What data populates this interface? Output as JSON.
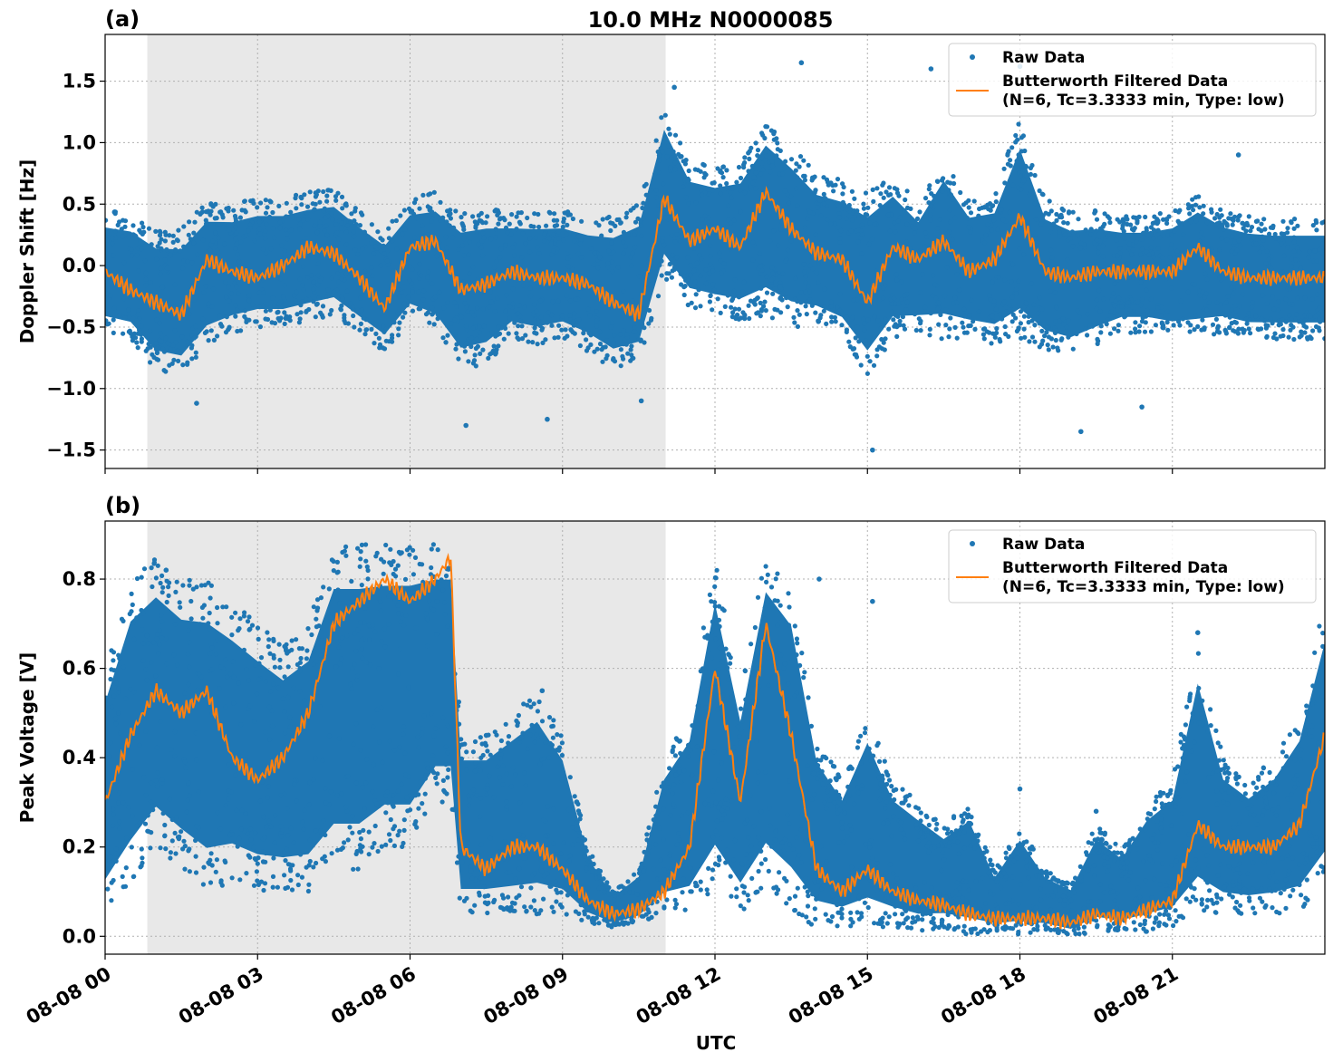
{
  "figure": {
    "title": "10.0 MHz N0000085",
    "xlabel": "UTC",
    "colors": {
      "raw": "#1f77b4",
      "filtered": "#ff7f0e",
      "shade": "#e8e8e8"
    }
  },
  "chart_data": [
    {
      "type": "scatter",
      "panel_label": "(a)",
      "title": "10.0 MHz N0000085",
      "xlabel": "",
      "ylabel": "Doppler Shift [Hz]",
      "xlim": [
        0,
        24
      ],
      "ylim": [
        -1.65,
        1.88
      ],
      "x_ticks": [
        0,
        3,
        6,
        9,
        12,
        15,
        18,
        21
      ],
      "y_ticks": [
        -1.5,
        -1.0,
        -0.5,
        0.0,
        0.5,
        1.0,
        1.5
      ],
      "y_tick_labels": [
        "−1.5",
        "−1.0",
        "−0.5",
        "0.0",
        "0.5",
        "1.0",
        "1.5"
      ],
      "shaded_region": [
        0.83,
        11.03
      ],
      "grid": true,
      "legend_position": "top-right",
      "legend": [
        "Raw Data",
        "Butterworth Filtered Data",
        "(N=6, Tc=3.3333 min, Type: low)"
      ],
      "series": [
        {
          "name": "Raw Data",
          "kind": "scatter-band",
          "x": [
            0,
            0.5,
            1,
            1.5,
            2,
            2.5,
            3,
            3.5,
            4,
            4.5,
            5,
            5.5,
            6,
            6.5,
            7,
            7.5,
            8,
            8.5,
            9,
            9.5,
            10,
            10.5,
            11,
            11.5,
            12,
            12.5,
            13,
            13.5,
            14,
            14.5,
            15,
            15.5,
            16,
            16.5,
            17,
            17.5,
            18,
            18.5,
            19,
            19.5,
            20,
            20.5,
            21,
            21.5,
            22,
            22.5,
            23,
            23.5,
            24
          ],
          "y_high": [
            0.45,
            0.42,
            0.3,
            0.3,
            0.52,
            0.5,
            0.55,
            0.55,
            0.6,
            0.62,
            0.45,
            0.3,
            0.55,
            0.6,
            0.45,
            0.48,
            0.45,
            0.45,
            0.45,
            0.4,
            0.4,
            0.5,
            1.3,
            0.85,
            0.8,
            0.85,
            1.2,
            1.0,
            0.75,
            0.7,
            0.6,
            0.75,
            0.5,
            0.9,
            0.55,
            0.6,
            1.2,
            0.55,
            0.45,
            0.45,
            0.4,
            0.4,
            0.45,
            0.6,
            0.45,
            0.4,
            0.38,
            0.38,
            0.38
          ],
          "y_low": [
            -0.55,
            -0.6,
            -0.85,
            -0.9,
            -0.65,
            -0.55,
            -0.5,
            -0.5,
            -0.45,
            -0.4,
            -0.55,
            -0.7,
            -0.45,
            -0.55,
            -0.85,
            -0.8,
            -0.6,
            -0.65,
            -0.6,
            -0.7,
            -0.85,
            -0.8,
            -0.1,
            -0.35,
            -0.4,
            -0.45,
            -0.4,
            -0.5,
            -0.5,
            -0.6,
            -0.9,
            -0.6,
            -0.55,
            -0.6,
            -0.6,
            -0.65,
            -0.6,
            -0.7,
            -0.75,
            -0.65,
            -0.55,
            -0.55,
            -0.6,
            -0.6,
            -0.55,
            -0.6,
            -0.6,
            -0.6,
            -0.6
          ],
          "outliers": [
            [
              1.8,
              -1.12
            ],
            [
              7.1,
              -1.3
            ],
            [
              8.7,
              -1.25
            ],
            [
              10.55,
              -1.1
            ],
            [
              11.2,
              1.45
            ],
            [
              13.7,
              1.65
            ],
            [
              15.1,
              -1.5
            ],
            [
              16.25,
              1.6
            ],
            [
              18.0,
              1.62
            ],
            [
              19.2,
              -1.35
            ],
            [
              20.4,
              -1.15
            ],
            [
              22.3,
              0.9
            ]
          ]
        },
        {
          "name": "Butterworth Filtered Data",
          "kind": "line",
          "x": [
            0,
            0.5,
            1,
            1.5,
            2,
            2.5,
            3,
            3.5,
            4,
            4.5,
            5,
            5.5,
            6,
            6.5,
            7,
            7.5,
            8,
            8.5,
            9,
            9.5,
            10,
            10.5,
            11,
            11.5,
            12,
            12.5,
            13,
            13.5,
            14,
            14.5,
            15,
            15.5,
            16,
            16.5,
            17,
            17.5,
            18,
            18.5,
            19,
            19.5,
            20,
            20.5,
            21,
            21.5,
            22,
            22.5,
            23,
            23.5,
            24
          ],
          "y": [
            -0.05,
            -0.2,
            -0.3,
            -0.4,
            0.05,
            -0.05,
            -0.1,
            0.0,
            0.15,
            0.1,
            -0.1,
            -0.35,
            0.15,
            0.2,
            -0.2,
            -0.15,
            -0.05,
            -0.1,
            -0.1,
            -0.15,
            -0.3,
            -0.4,
            0.55,
            0.2,
            0.3,
            0.15,
            0.6,
            0.3,
            0.1,
            0.05,
            -0.3,
            0.15,
            0.05,
            0.2,
            -0.05,
            0.05,
            0.4,
            -0.05,
            -0.1,
            -0.05,
            -0.05,
            -0.05,
            -0.05,
            0.15,
            -0.05,
            -0.1,
            -0.1,
            -0.1,
            -0.1
          ]
        }
      ]
    },
    {
      "type": "scatter",
      "panel_label": "(b)",
      "title": "",
      "xlabel": "UTC",
      "ylabel": "Peak Voltage [V]",
      "xlim": [
        0,
        24
      ],
      "ylim": [
        -0.04,
        0.93
      ],
      "x_ticks": [
        0,
        3,
        6,
        9,
        12,
        15,
        18,
        21
      ],
      "x_tick_labels": [
        "08-08 00",
        "08-08 03",
        "08-08 06",
        "08-08 09",
        "08-08 12",
        "08-08 15",
        "08-08 18",
        "08-08 21"
      ],
      "y_ticks": [
        0.0,
        0.2,
        0.4,
        0.6,
        0.8
      ],
      "y_tick_labels": [
        "0.0",
        "0.2",
        "0.4",
        "0.6",
        "0.8"
      ],
      "shaded_region": [
        0.83,
        11.03
      ],
      "grid": true,
      "legend_position": "top-right",
      "legend": [
        "Raw Data",
        "Butterworth Filtered Data",
        "(N=6, Tc=3.3333 min, Type: low)"
      ],
      "series": [
        {
          "name": "Raw Data",
          "kind": "scatter-band",
          "x": [
            0,
            0.5,
            1,
            1.5,
            2,
            2.5,
            3,
            3.5,
            4,
            4.5,
            5,
            5.5,
            6,
            6.5,
            6.8,
            7,
            7.5,
            8,
            8.5,
            9,
            9.5,
            10,
            10.5,
            11,
            11.5,
            12,
            12.5,
            13,
            13.5,
            14,
            14.5,
            15,
            15.5,
            16,
            16.5,
            17,
            17.5,
            18,
            18.5,
            19,
            19.5,
            20,
            20.5,
            21,
            21.5,
            22,
            22.5,
            23,
            23.5,
            24
          ],
          "y_high": [
            0.6,
            0.8,
            0.85,
            0.8,
            0.8,
            0.75,
            0.7,
            0.65,
            0.7,
            0.88,
            0.88,
            0.88,
            0.88,
            0.88,
            0.88,
            0.45,
            0.45,
            0.5,
            0.55,
            0.45,
            0.2,
            0.1,
            0.15,
            0.4,
            0.5,
            0.85,
            0.55,
            0.88,
            0.8,
            0.45,
            0.35,
            0.5,
            0.35,
            0.3,
            0.25,
            0.3,
            0.15,
            0.25,
            0.15,
            0.12,
            0.25,
            0.2,
            0.3,
            0.35,
            0.65,
            0.4,
            0.35,
            0.4,
            0.5,
            0.75
          ],
          "y_low": [
            0.05,
            0.12,
            0.2,
            0.15,
            0.1,
            0.12,
            0.1,
            0.1,
            0.1,
            0.15,
            0.15,
            0.2,
            0.2,
            0.3,
            0.3,
            0.05,
            0.05,
            0.05,
            0.05,
            0.05,
            0.03,
            0.02,
            0.03,
            0.05,
            0.05,
            0.1,
            0.05,
            0.1,
            0.05,
            0.02,
            0.02,
            0.02,
            0.02,
            0.01,
            0.02,
            0.0,
            0.01,
            0.0,
            0.01,
            0.0,
            0.01,
            0.01,
            0.01,
            0.02,
            0.05,
            0.05,
            0.05,
            0.05,
            0.05,
            0.1
          ],
          "outliers": [
            [
              1.2,
              0.82
            ],
            [
              7.5,
              0.45
            ],
            [
              8.6,
              0.55
            ],
            [
              14.05,
              0.8
            ],
            [
              15.1,
              0.75
            ],
            [
              18.0,
              0.33
            ],
            [
              19.5,
              0.28
            ],
            [
              21.5,
              0.68
            ]
          ]
        },
        {
          "name": "Butterworth Filtered Data",
          "kind": "line",
          "x": [
            0,
            0.5,
            1,
            1.5,
            2,
            2.5,
            3,
            3.5,
            4,
            4.5,
            5,
            5.5,
            6,
            6.5,
            6.8,
            7,
            7.5,
            8,
            8.5,
            9,
            9.5,
            10,
            10.5,
            11,
            11.5,
            12,
            12.5,
            13,
            13.5,
            14,
            14.5,
            15,
            15.5,
            16,
            16.5,
            17,
            17.5,
            18,
            18.5,
            19,
            19.5,
            20,
            20.5,
            21,
            21.5,
            22,
            22.5,
            23,
            23.5,
            24
          ],
          "y": [
            0.3,
            0.45,
            0.55,
            0.5,
            0.55,
            0.4,
            0.35,
            0.4,
            0.5,
            0.7,
            0.75,
            0.8,
            0.75,
            0.8,
            0.85,
            0.2,
            0.15,
            0.2,
            0.2,
            0.15,
            0.08,
            0.05,
            0.06,
            0.1,
            0.2,
            0.6,
            0.3,
            0.7,
            0.45,
            0.15,
            0.1,
            0.15,
            0.1,
            0.08,
            0.07,
            0.05,
            0.04,
            0.04,
            0.04,
            0.03,
            0.05,
            0.04,
            0.06,
            0.08,
            0.25,
            0.2,
            0.2,
            0.2,
            0.25,
            0.45
          ]
        }
      ]
    }
  ]
}
